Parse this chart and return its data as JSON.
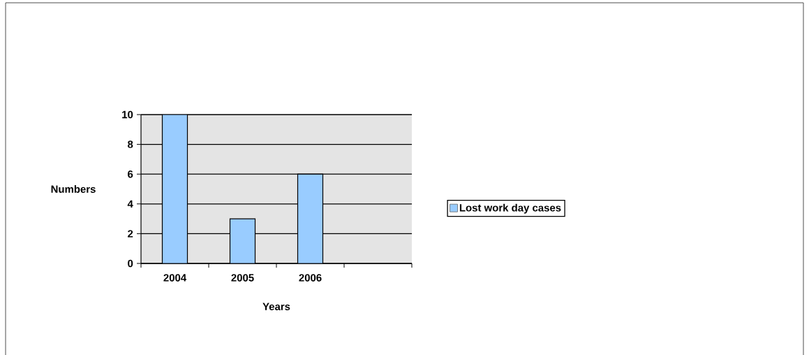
{
  "chart_data": {
    "type": "bar",
    "xlabel": "Years",
    "ylabel": "Numbers",
    "categories": [
      "2004",
      "2005",
      "2006",
      null
    ],
    "series": [
      {
        "name": "Lost work day cases",
        "color": "#99ccff",
        "values": [
          10,
          3,
          6,
          null
        ]
      }
    ],
    "ylim": [
      0,
      10
    ],
    "yticks": [
      0,
      2,
      4,
      6,
      8,
      10
    ],
    "grid": "y",
    "legend": "right"
  }
}
